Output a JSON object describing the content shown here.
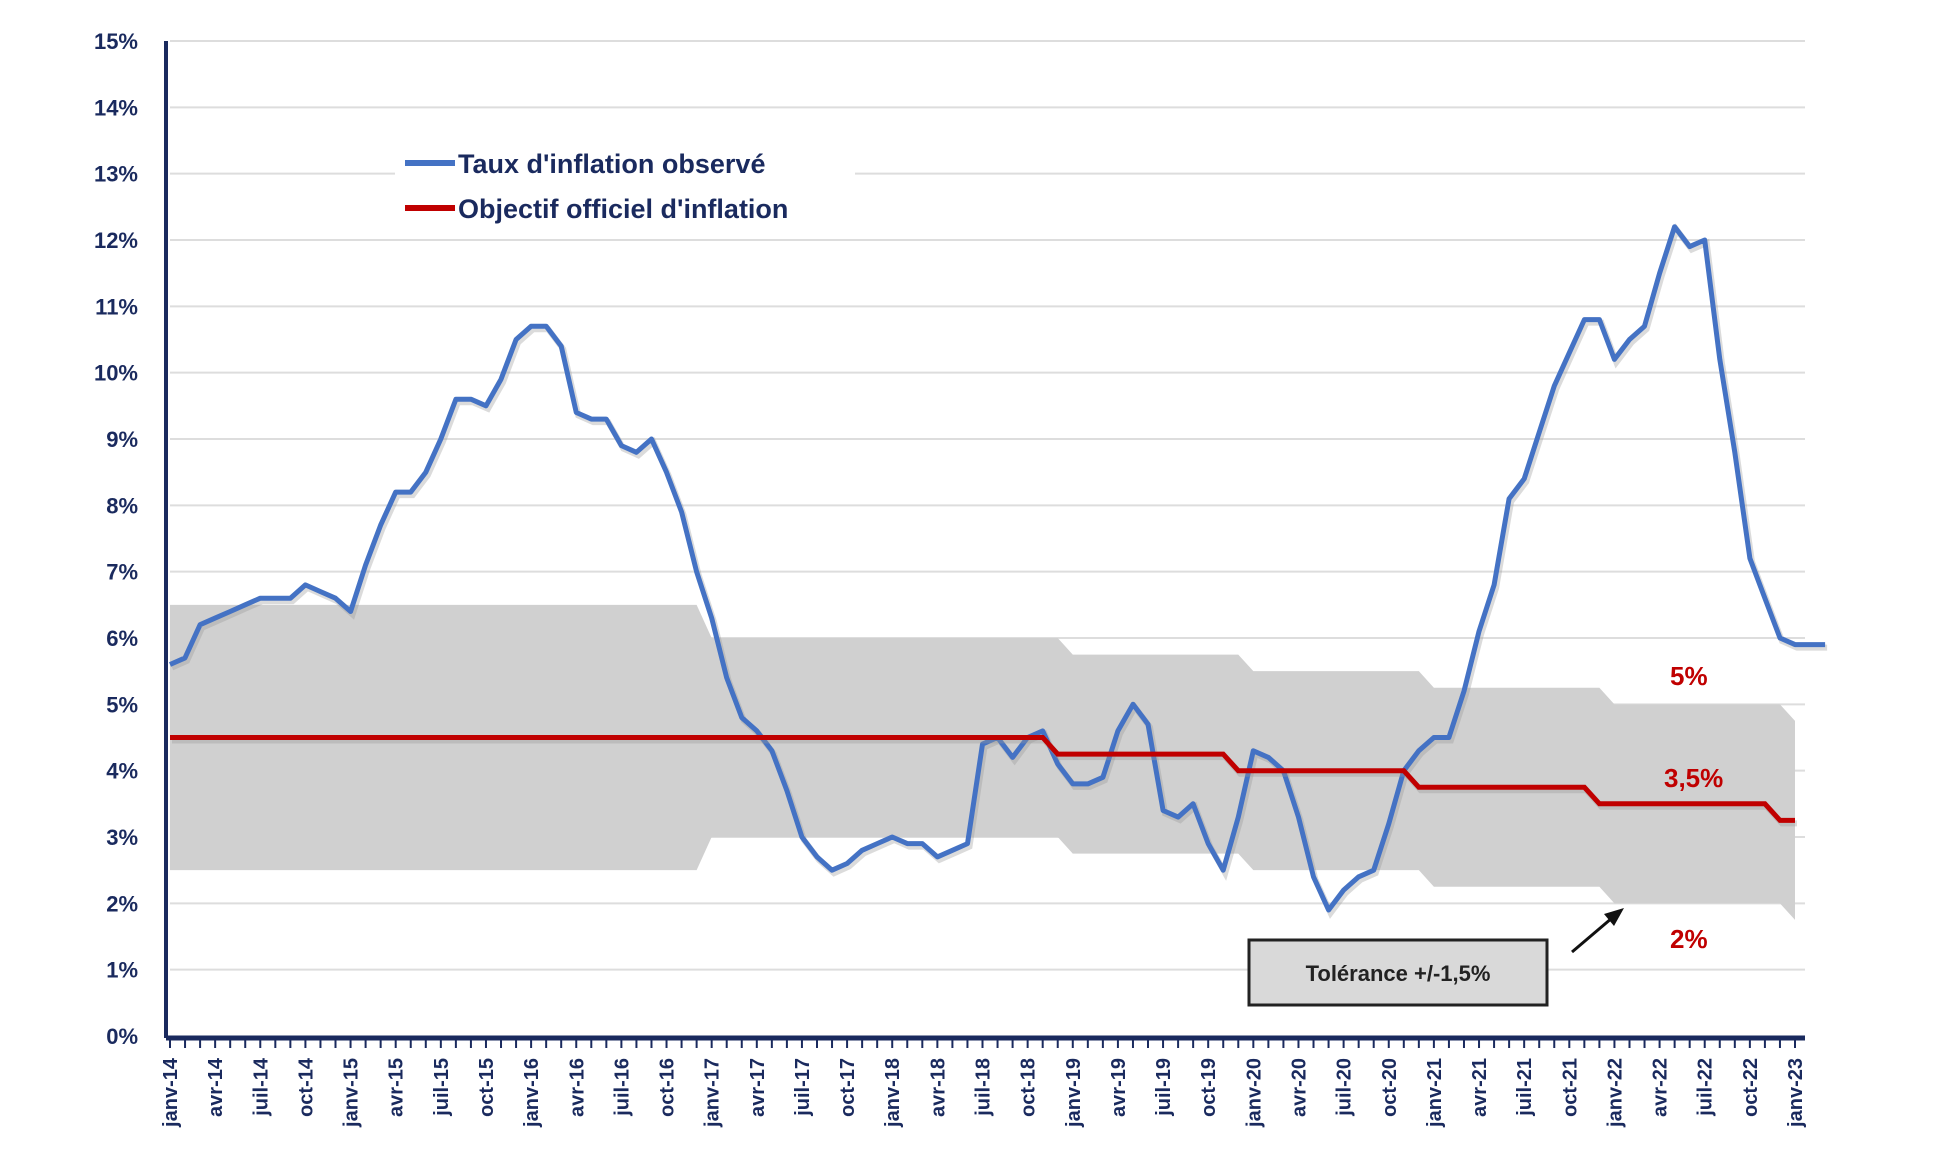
{
  "chart_data": {
    "type": "line",
    "title": "",
    "xlabel": "",
    "ylabel": "",
    "ylim": [
      0,
      15
    ],
    "grid": true,
    "legend_position": "top-left",
    "x_start": "janv-14",
    "x_end": "janv-23",
    "y_ticks": [
      "0%",
      "1%",
      "2%",
      "3%",
      "4%",
      "5%",
      "6%",
      "7%",
      "8%",
      "9%",
      "10%",
      "11%",
      "12%",
      "13%",
      "14%",
      "15%"
    ],
    "x_tick_labels": [
      "janv-14",
      "avr-14",
      "juil-14",
      "oct-14",
      "janv-15",
      "avr-15",
      "juil-15",
      "oct-15",
      "janv-16",
      "avr-16",
      "juil-16",
      "oct-16",
      "janv-17",
      "avr-17",
      "juil-17",
      "oct-17",
      "janv-18",
      "avr-18",
      "juil-18",
      "oct-18",
      "janv-19",
      "avr-19",
      "juil-19",
      "oct-19",
      "janv-20",
      "avr-20",
      "juil-20",
      "oct-20",
      "janv-21",
      "avr-21",
      "juil-21",
      "oct-21",
      "janv-22",
      "avr-22",
      "juil-22",
      "oct-22",
      "janv-23"
    ],
    "series": [
      {
        "name": "Taux d'inflation observé",
        "color": "#4472c4",
        "values": [
          5.6,
          5.7,
          6.2,
          6.3,
          6.4,
          6.5,
          6.6,
          6.6,
          6.6,
          6.8,
          6.7,
          6.6,
          6.4,
          7.1,
          7.7,
          8.2,
          8.2,
          8.5,
          9.0,
          9.6,
          9.6,
          9.5,
          9.9,
          10.5,
          10.7,
          10.7,
          10.4,
          9.4,
          9.3,
          9.3,
          8.9,
          8.8,
          9.0,
          8.5,
          7.9,
          7.0,
          6.3,
          5.4,
          4.8,
          4.6,
          4.3,
          3.7,
          3.0,
          2.7,
          2.5,
          2.6,
          2.8,
          2.9,
          3.0,
          2.9,
          2.9,
          2.7,
          2.8,
          2.9,
          4.4,
          4.5,
          4.2,
          4.5,
          4.6,
          4.1,
          3.8,
          3.8,
          3.9,
          4.6,
          5.0,
          4.7,
          3.4,
          3.3,
          3.5,
          2.9,
          2.5,
          3.3,
          4.3,
          4.2,
          4.0,
          3.3,
          2.4,
          1.9,
          2.2,
          2.4,
          2.5,
          3.2,
          4.0,
          4.3,
          4.5,
          4.5,
          5.2,
          6.1,
          6.8,
          8.1,
          8.4,
          9.1,
          9.8,
          10.3,
          10.8,
          10.8,
          10.2,
          10.5,
          10.7,
          11.5,
          12.2,
          11.9,
          12.0,
          10.2,
          8.8,
          7.2,
          6.6,
          6.0,
          5.9,
          5.9,
          5.9
        ],
        "x_index_note": "monthly from janv-14"
      },
      {
        "name": "Objectif officiel d'inflation",
        "color": "#c00000",
        "steps": [
          {
            "from": "janv-14",
            "to": "nov-18",
            "value": 4.5
          },
          {
            "from": "déc-18",
            "to": "nov-19",
            "value": 4.25
          },
          {
            "from": "déc-19",
            "to": "nov-20",
            "value": 4.0
          },
          {
            "from": "déc-20",
            "to": "nov-21",
            "value": 3.75
          },
          {
            "from": "déc-21",
            "to": "nov-22",
            "value": 3.5
          },
          {
            "from": "déc-22",
            "to": "janv-23",
            "value": 3.25
          }
        ]
      }
    ],
    "tolerance_band": {
      "color": "#d0d0d0",
      "segments": [
        {
          "from": "janv-14",
          "to": "déc-16",
          "low": 2.5,
          "high": 6.5
        },
        {
          "from": "janv-17",
          "to": "déc-18",
          "low": 3.0,
          "high": 6.0
        },
        {
          "from": "janv-19",
          "to": "déc-19",
          "low": 2.75,
          "high": 5.75
        },
        {
          "from": "janv-20",
          "to": "déc-20",
          "low": 2.5,
          "high": 5.5
        },
        {
          "from": "janv-21",
          "to": "déc-21",
          "low": 2.25,
          "high": 5.25
        },
        {
          "from": "janv-22",
          "to": "déc-22",
          "low": 2.0,
          "high": 5.0
        },
        {
          "from": "janv-23",
          "to": "janv-23",
          "low": 1.75,
          "high": 4.75
        }
      ]
    },
    "annotations": {
      "upper": "5%",
      "target": "3,5%",
      "lower": "2%",
      "tolerance_box": "Tolérance +/-1,5%"
    },
    "legend": [
      "Taux d'inflation observé",
      "Objectif officiel d'inflation"
    ]
  }
}
